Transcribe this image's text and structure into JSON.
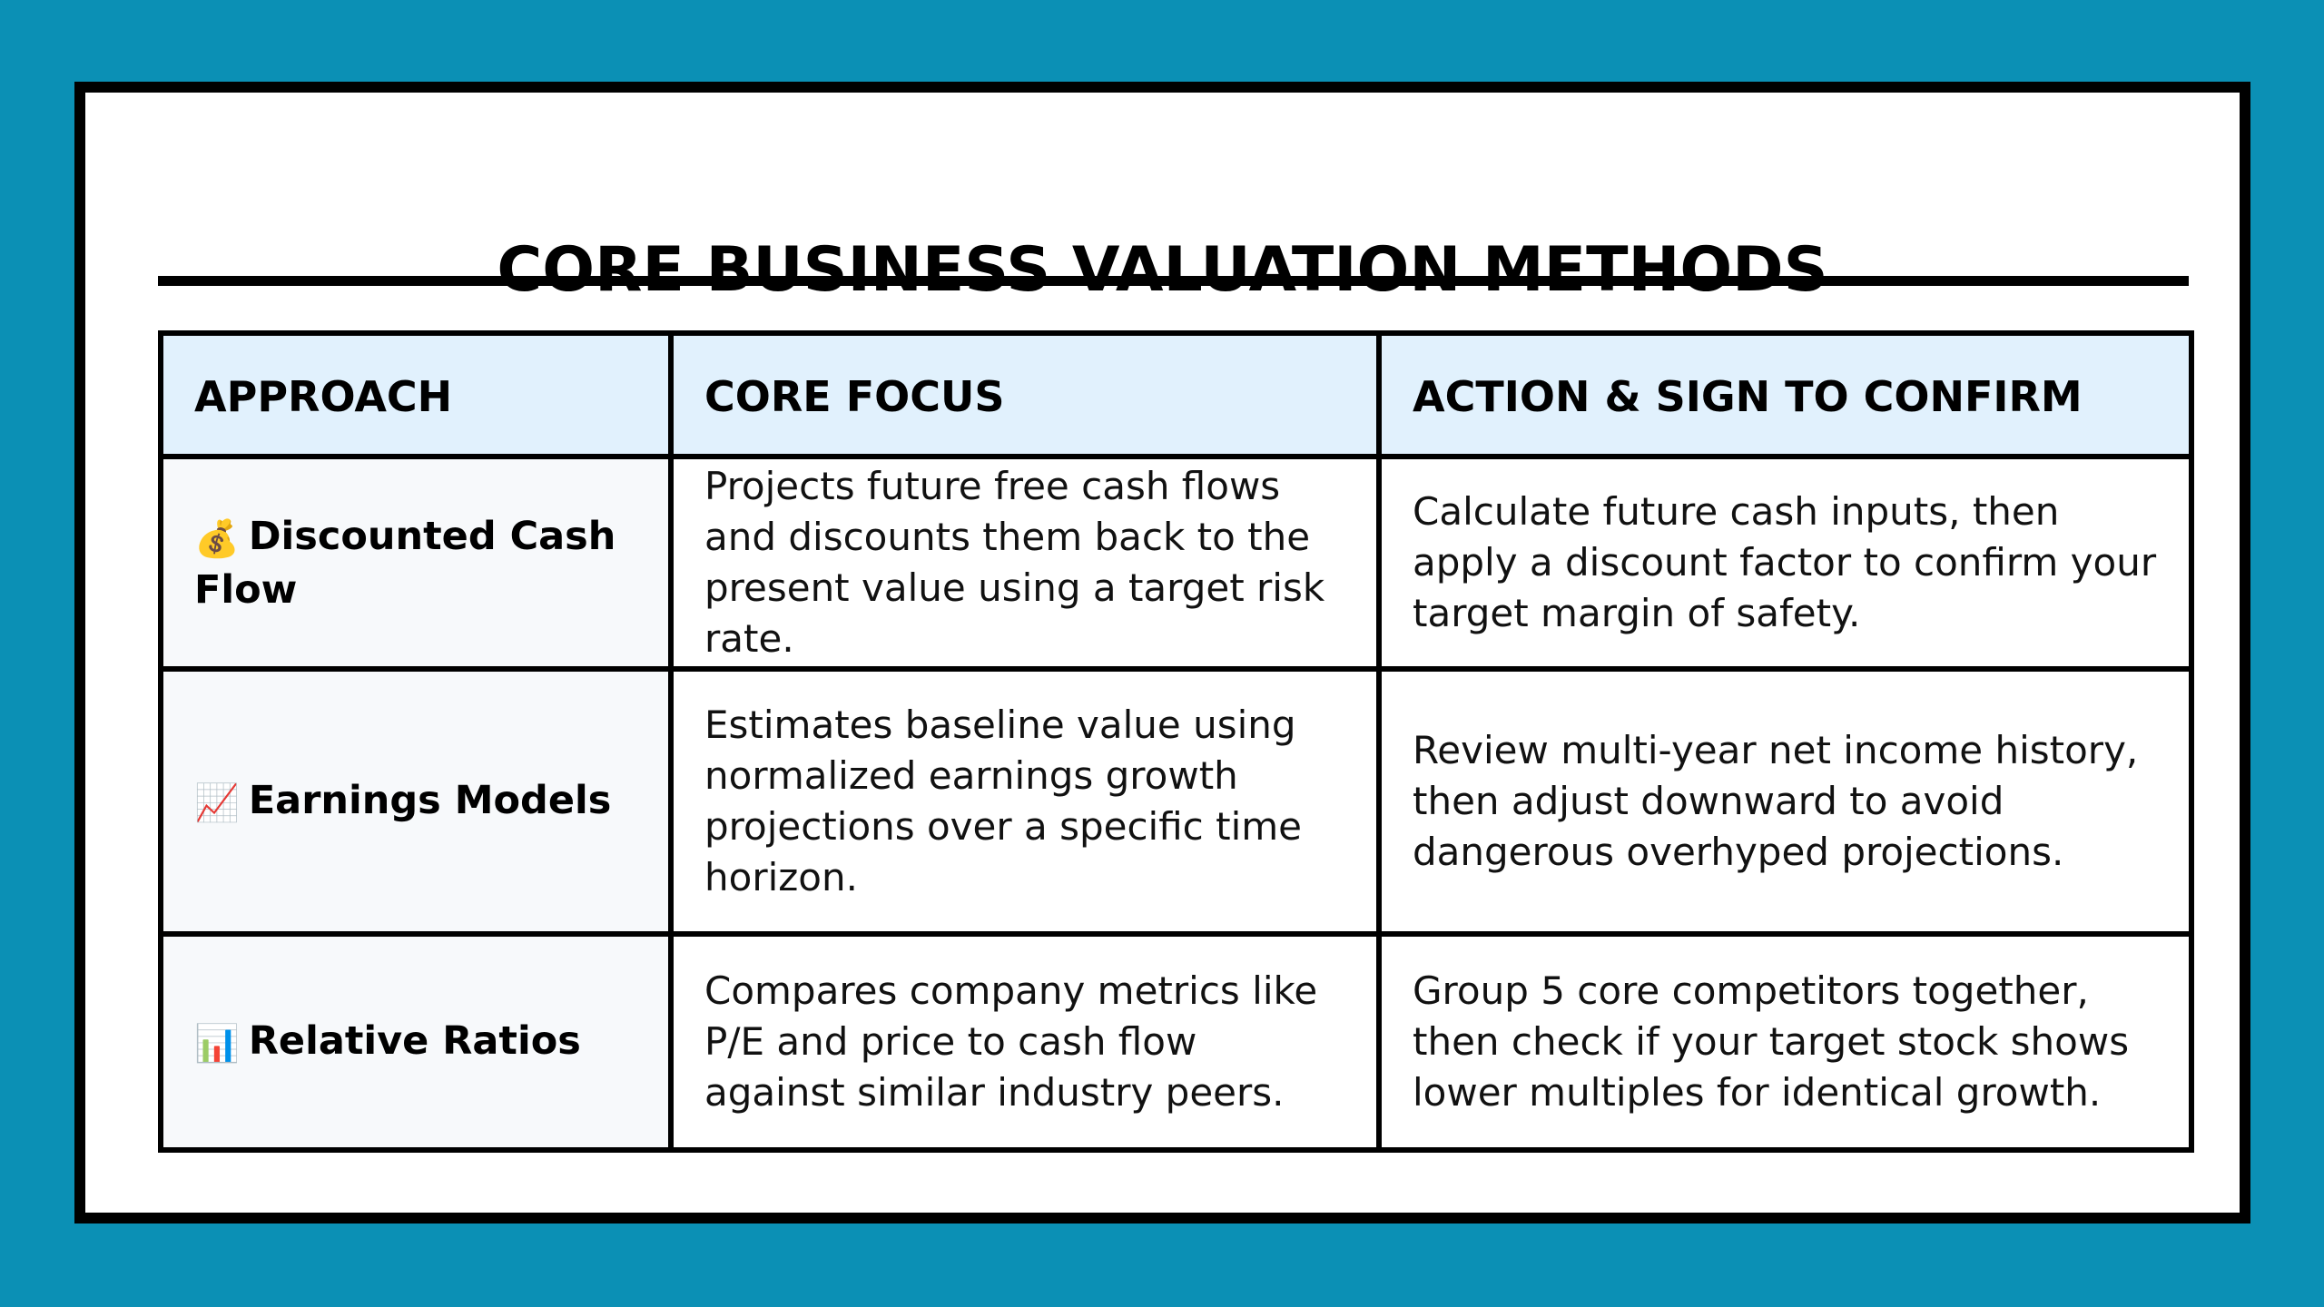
{
  "title": "CORE BUSINESS VALUATION METHODS",
  "table": {
    "headers": [
      "APPROACH",
      "CORE FOCUS",
      "ACTION & SIGN TO CONFIRM"
    ],
    "rows": [
      {
        "icon": "money-bag-icon",
        "icon_glyph": "💰",
        "approach": "Discounted Cash Flow",
        "focus": "Projects future free cash flows and discounts them back to the present value using a target risk rate.",
        "action": "Calculate future cash inputs, then apply a discount factor to confirm your target margin of safety."
      },
      {
        "icon": "chart-increasing-icon",
        "icon_glyph": "📈",
        "approach": "Earnings Models",
        "focus": "Estimates baseline value using normalized earnings growth projections over a specific time horizon.",
        "action": "Review multi-year net income history, then adjust downward to avoid dangerous overhyped projections."
      },
      {
        "icon": "bar-chart-icon",
        "icon_glyph": "📊",
        "approach": "Relative Ratios",
        "focus": "Compares company metrics like P/E and price to cash flow against similar industry peers.",
        "action": "Group 5 core competitors together, then check if your target stock shows lower multiples for identical growth."
      }
    ]
  },
  "colors": {
    "background": "#0b90b5",
    "card": "#ffffff",
    "border": "#000000",
    "header_fill": "#e1f1fd",
    "approach_fill": "#f7f9fb"
  }
}
